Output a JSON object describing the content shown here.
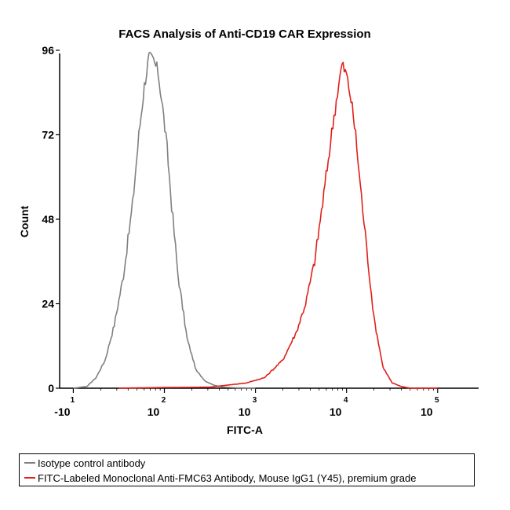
{
  "chart_data": {
    "type": "line",
    "title": "FACS Analysis of Anti-CD19 CAR Expression",
    "xlabel": "FITC-A",
    "ylabel": "Count",
    "xscale": "log",
    "ylim": [
      0,
      96
    ],
    "yticks": [
      "0",
      "24",
      "48",
      "72",
      "96"
    ],
    "xticks": [
      {
        "base": "-10",
        "exp": "1"
      },
      {
        "base": "10",
        "exp": "2"
      },
      {
        "base": "10",
        "exp": "3"
      },
      {
        "base": "10",
        "exp": "4"
      },
      {
        "base": "10",
        "exp": "5"
      }
    ],
    "series": [
      {
        "name": "Isotype control antibody",
        "color": "#808080",
        "x": [
          1.0,
          1.15,
          1.25,
          1.35,
          1.45,
          1.55,
          1.65,
          1.72,
          1.78,
          1.83,
          1.88,
          1.93,
          1.98,
          2.03,
          2.08,
          2.15,
          2.25,
          2.35,
          2.45,
          2.55,
          2.65,
          2.8,
          3.0
        ],
        "y": [
          0,
          0.5,
          3,
          8,
          18,
          32,
          52,
          72,
          86,
          94,
          93,
          90,
          80,
          68,
          52,
          32,
          14,
          5,
          2,
          0.8,
          0.3,
          0.1,
          0
        ]
      },
      {
        "name": "FITC-Labeled Monoclonal Anti-FMC63 Antibody, Mouse IgG1 (Y45), premium grade",
        "color": "#e0201a",
        "x": [
          1.5,
          2.0,
          2.5,
          2.9,
          3.1,
          3.3,
          3.45,
          3.55,
          3.65,
          3.75,
          3.85,
          3.9,
          3.95,
          4.0,
          4.05,
          4.1,
          4.15,
          4.22,
          4.3,
          4.4,
          4.5,
          4.6,
          4.7,
          5.0
        ],
        "y": [
          0,
          0.2,
          0.3,
          1.5,
          3,
          8,
          16,
          24,
          36,
          55,
          75,
          84,
          92,
          89,
          82,
          72,
          58,
          40,
          20,
          6,
          1.5,
          0.5,
          0,
          0
        ]
      }
    ]
  }
}
